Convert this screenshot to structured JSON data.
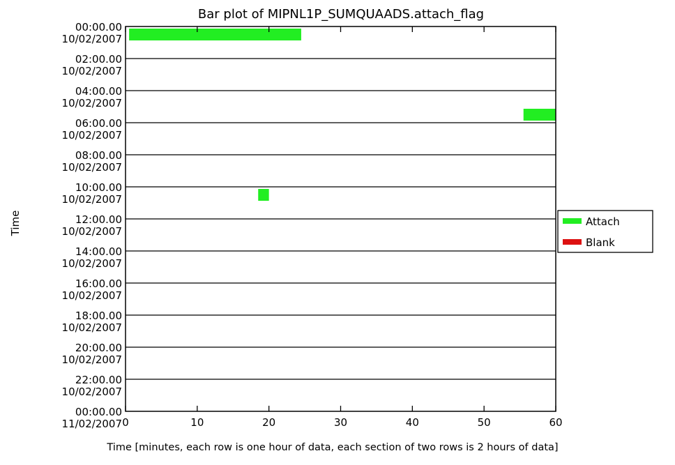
{
  "chart_data": {
    "type": "bar",
    "title": "Bar plot of MIPNL1P_SUMQUAADS.attach_flag",
    "xlabel": "Time [minutes, each row is one hour of data, each section of two rows is 2 hours of data]",
    "ylabel": "Time",
    "xlim": [
      0,
      60
    ],
    "x_ticks": [
      0,
      10,
      20,
      30,
      40,
      50,
      60
    ],
    "x_tick_labels": [
      "0",
      "10",
      "20",
      "30",
      "40",
      "50",
      "60"
    ],
    "row_count": 24,
    "y_tick_labels": [
      {
        "time": "00:00.00",
        "date": "10/02/2007"
      },
      {
        "time": "02:00.00",
        "date": "10/02/2007"
      },
      {
        "time": "04:00.00",
        "date": "10/02/2007"
      },
      {
        "time": "06:00.00",
        "date": "10/02/2007"
      },
      {
        "time": "08:00.00",
        "date": "10/02/2007"
      },
      {
        "time": "10:00.00",
        "date": "10/02/2007"
      },
      {
        "time": "12:00.00",
        "date": "10/02/2007"
      },
      {
        "time": "14:00.00",
        "date": "10/02/2007"
      },
      {
        "time": "16:00.00",
        "date": "10/02/2007"
      },
      {
        "time": "18:00.00",
        "date": "10/02/2007"
      },
      {
        "time": "20:00.00",
        "date": "10/02/2007"
      },
      {
        "time": "22:00.00",
        "date": "10/02/2007"
      },
      {
        "time": "00:00.00",
        "date": "11/02/2007"
      }
    ],
    "legend": {
      "placement": "right",
      "entries": [
        {
          "label": "Attach",
          "color": "#22ee22"
        },
        {
          "label": "Blank",
          "color": "#dd1111"
        }
      ]
    },
    "series": [
      {
        "name": "Attach",
        "color": "#22ee22",
        "segments": [
          {
            "hour": 0,
            "start_minute": 0.5,
            "end_minute": 24.5
          },
          {
            "hour": 5,
            "start_minute": 55.5,
            "end_minute": 60
          },
          {
            "hour": 10,
            "start_minute": 18.5,
            "end_minute": 20
          }
        ]
      },
      {
        "name": "Blank",
        "color": "#dd1111",
        "segments": []
      }
    ],
    "grid": "horizontal lines every 2 hours"
  }
}
